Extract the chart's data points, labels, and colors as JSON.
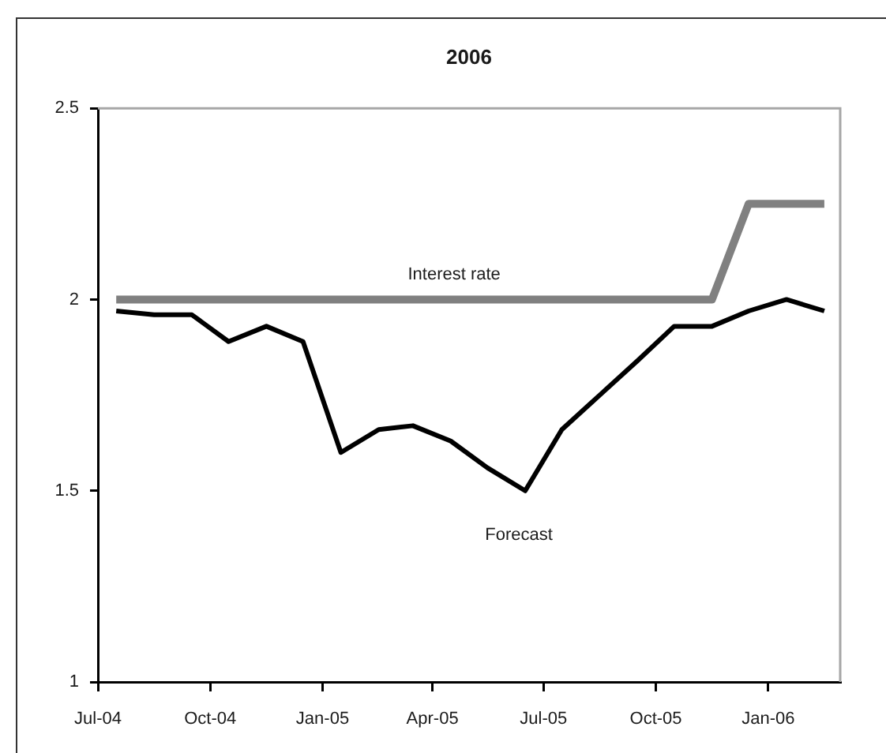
{
  "chart_data": {
    "type": "line",
    "title": "2006",
    "x": [
      "2004-07-16",
      "2004-08-16",
      "2004-09-16",
      "2004-10-16",
      "2004-11-16",
      "2004-12-16",
      "2005-01-16",
      "2005-02-16",
      "2005-03-16",
      "2005-04-16",
      "2005-05-16",
      "2005-06-16",
      "2005-07-16",
      "2005-08-16",
      "2005-09-16",
      "2005-10-16",
      "2005-11-16",
      "2005-12-16",
      "2006-01-16",
      "2006-02-16"
    ],
    "series": [
      {
        "name": "Interest rate",
        "color": "#808080",
        "values": [
          2,
          2,
          2,
          2,
          2,
          2,
          2,
          2,
          2,
          2,
          2,
          2,
          2,
          2,
          2,
          2,
          2,
          2.25,
          2.25,
          2.25
        ]
      },
      {
        "name": "Forecast",
        "color": "#000000",
        "values": [
          1.97,
          1.96,
          1.96,
          1.89,
          1.93,
          1.89,
          1.6,
          1.66,
          1.67,
          1.63,
          1.56,
          1.5,
          1.66,
          1.75,
          1.84,
          1.93,
          1.93,
          1.97,
          2.0,
          1.97
        ]
      }
    ],
    "xlim": [
      "2004-07",
      "2006-03"
    ],
    "xticks": [
      {
        "value": "2004-07",
        "label": "Jul-04"
      },
      {
        "value": "2004-10",
        "label": "Oct-04"
      },
      {
        "value": "2005-01",
        "label": "Jan-05"
      },
      {
        "value": "2005-04",
        "label": "Apr-05"
      },
      {
        "value": "2005-07",
        "label": "Jul-05"
      },
      {
        "value": "2005-10",
        "label": "Oct-05"
      },
      {
        "value": "2006-01",
        "label": "Jan-06"
      }
    ],
    "ylim": [
      1,
      2.5
    ],
    "yticks": [
      1,
      1.5,
      2,
      2.5
    ],
    "grid": false,
    "legend": false,
    "marker": "none"
  }
}
